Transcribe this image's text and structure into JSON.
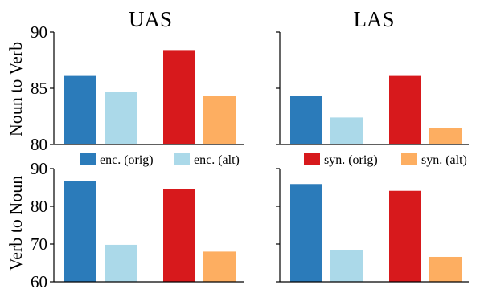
{
  "chart_data": {
    "type": "bar",
    "column_titles": [
      "UAS",
      "LAS"
    ],
    "row_labels": [
      "Noun to Verb",
      "Verb to Noun"
    ],
    "series_names": [
      "enc. (orig)",
      "enc. (alt)",
      "syn. (orig)",
      "syn. (alt)"
    ],
    "colors": [
      "#2b7bba",
      "#abd9e9",
      "#d7191c",
      "#fdae61"
    ],
    "legend_placement": "between rows",
    "grid": false,
    "panels": [
      {
        "row": 0,
        "col": 0,
        "ylim": [
          80,
          90
        ],
        "yticks": [
          "80",
          "85",
          "90"
        ],
        "values": [
          86.1,
          84.7,
          88.4,
          84.3
        ]
      },
      {
        "row": 0,
        "col": 1,
        "ylim": [
          80,
          90
        ],
        "yticks": [],
        "values": [
          84.3,
          82.4,
          86.1,
          81.5
        ]
      },
      {
        "row": 1,
        "col": 0,
        "ylim": [
          60,
          90
        ],
        "yticks": [
          "60",
          "70",
          "80",
          "90"
        ],
        "values": [
          86.8,
          69.8,
          84.6,
          68.0
        ]
      },
      {
        "row": 1,
        "col": 1,
        "ylim": [
          60,
          90
        ],
        "yticks": [],
        "values": [
          85.9,
          68.5,
          84.1,
          66.6
        ]
      }
    ]
  }
}
